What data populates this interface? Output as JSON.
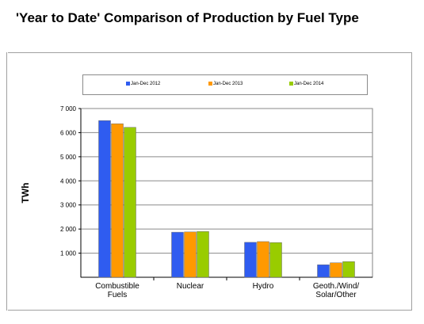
{
  "page": {
    "title": "'Year to Date' Comparison of Production by Fuel Type"
  },
  "colors": {
    "series": [
      "#2f5cf0",
      "#ff9900",
      "#99cc00"
    ]
  },
  "chart_data": {
    "type": "bar",
    "title": "",
    "ylabel": "TWh",
    "xlabel": "",
    "ylim": [
      0,
      7000
    ],
    "yticks": [
      "1 000",
      "2 000",
      "3 000",
      "4 000",
      "5 000",
      "6 000",
      "7 000"
    ],
    "ytick_values": [
      1000,
      2000,
      3000,
      4000,
      5000,
      6000,
      7000
    ],
    "categories": [
      [
        "Combustible",
        "Fuels"
      ],
      [
        "Nuclear"
      ],
      [
        "Hydro"
      ],
      [
        "Geoth./Wind/",
        "Solar/Other"
      ]
    ],
    "grid": true,
    "legend_position": "top",
    "series": [
      {
        "name": "Jan-Dec 2012",
        "values": [
          6500,
          1870,
          1450,
          520
        ]
      },
      {
        "name": "Jan-Dec 2013",
        "values": [
          6370,
          1880,
          1480,
          600
        ]
      },
      {
        "name": "Jan-Dec 2014",
        "values": [
          6220,
          1900,
          1440,
          650
        ]
      }
    ]
  }
}
